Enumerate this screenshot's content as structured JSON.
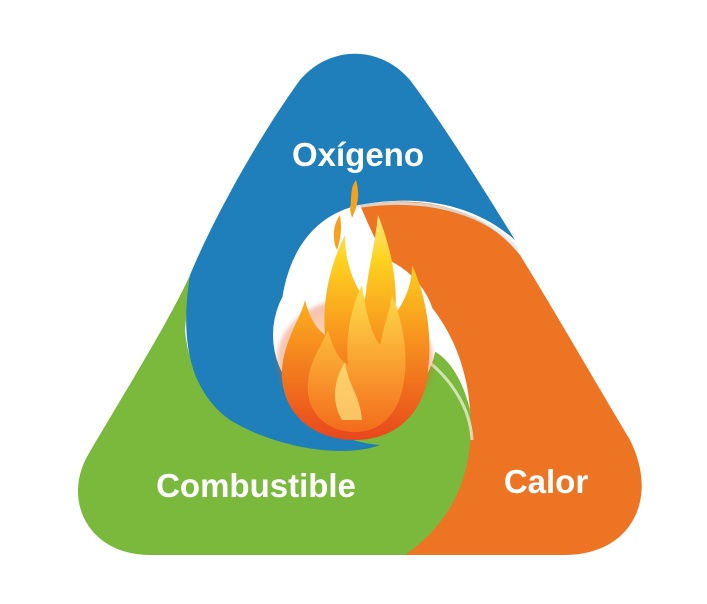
{
  "labels": {
    "oxygen": "Oxígeno",
    "fuel": "Combustible",
    "heat": "Calor"
  },
  "colors": {
    "oxygen": "#1f7fba",
    "fuel": "#7ab93b",
    "heat": "#ec7422",
    "text": "#ffffff"
  },
  "icons": {
    "center": "flame-icon"
  }
}
